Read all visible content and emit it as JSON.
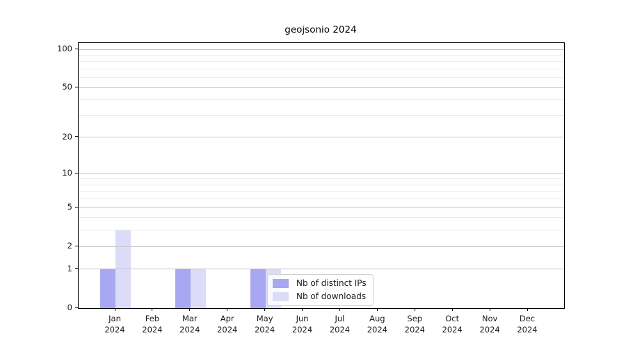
{
  "title": "geojsonio 2024",
  "colors": {
    "distinct_ips": "#a7a7f2",
    "downloads": "#dcdcf9",
    "grid_major": "#c3c3c3",
    "grid_minor": "#ebebeb",
    "axis": "#000000"
  },
  "legend": {
    "items": [
      {
        "label": "Nb of distinct IPs",
        "color": "#a7a7f2"
      },
      {
        "label": "Nb of downloads",
        "color": "#dcdcf9"
      }
    ]
  },
  "chart_data": {
    "type": "bar",
    "title": "geojsonio 2024",
    "categories": [
      "Jan 2024",
      "Feb 2024",
      "Mar 2024",
      "Apr 2024",
      "May 2024",
      "Jun 2024",
      "Jul 2024",
      "Aug 2024",
      "Sep 2024",
      "Oct 2024",
      "Nov 2024",
      "Dec 2024"
    ],
    "series": [
      {
        "name": "Nb of distinct IPs",
        "color": "#a7a7f2",
        "values": [
          1,
          0,
          1,
          0,
          1,
          0,
          0,
          0,
          0,
          0,
          0,
          0
        ]
      },
      {
        "name": "Nb of downloads",
        "color": "#dcdcf9",
        "values": [
          3,
          0,
          1,
          0,
          1,
          0,
          0,
          0,
          0,
          0,
          0,
          0
        ]
      }
    ],
    "xlabel": "",
    "ylabel": "",
    "yscale": "log10(1+x)",
    "ylim": [
      0,
      112
    ],
    "y_major_ticks": [
      0,
      1,
      2,
      5,
      10,
      20,
      50,
      100
    ],
    "y_minor_gridlines": [
      3,
      4,
      6,
      7,
      8,
      9,
      30,
      40,
      60,
      70,
      80,
      90
    ],
    "grid": true,
    "legend_position": "lower center"
  }
}
